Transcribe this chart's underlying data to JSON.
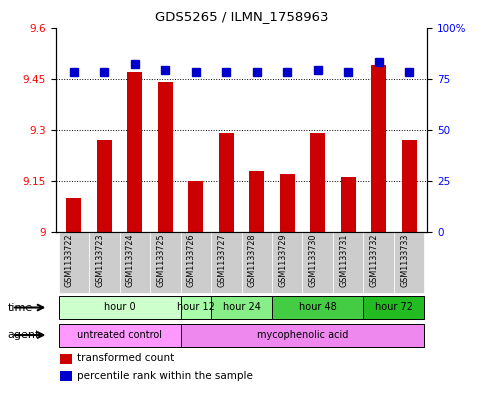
{
  "title": "GDS5265 / ILMN_1758963",
  "samples": [
    "GSM1133722",
    "GSM1133723",
    "GSM1133724",
    "GSM1133725",
    "GSM1133726",
    "GSM1133727",
    "GSM1133728",
    "GSM1133729",
    "GSM1133730",
    "GSM1133731",
    "GSM1133732",
    "GSM1133733"
  ],
  "bar_values": [
    9.1,
    9.27,
    9.47,
    9.44,
    9.15,
    9.29,
    9.18,
    9.17,
    9.29,
    9.16,
    9.49,
    9.27
  ],
  "percentile_values": [
    78,
    78,
    82,
    79,
    78,
    78,
    78,
    78,
    79,
    78,
    83,
    78
  ],
  "bar_color": "#cc0000",
  "percentile_color": "#0000cc",
  "ylim_left": [
    9.0,
    9.6
  ],
  "ylim_right": [
    0,
    100
  ],
  "yticks_left": [
    9.0,
    9.15,
    9.3,
    9.45,
    9.6
  ],
  "yticks_right": [
    0,
    25,
    50,
    75,
    100
  ],
  "ytick_labels_left": [
    "9",
    "9.15",
    "9.3",
    "9.45",
    "9.6"
  ],
  "ytick_labels_right": [
    "0",
    "25",
    "50",
    "75",
    "100%"
  ],
  "hgrid_vals": [
    9.15,
    9.3,
    9.45
  ],
  "time_groups": [
    {
      "label": "hour 0",
      "start": 0,
      "end": 3,
      "color": "#ccffcc"
    },
    {
      "label": "hour 12",
      "start": 4,
      "end": 4,
      "color": "#aaffaa"
    },
    {
      "label": "hour 24",
      "start": 5,
      "end": 6,
      "color": "#88ee88"
    },
    {
      "label": "hour 48",
      "start": 7,
      "end": 9,
      "color": "#44cc44"
    },
    {
      "label": "hour 72",
      "start": 10,
      "end": 11,
      "color": "#22bb22"
    }
  ],
  "agent_groups": [
    {
      "label": "untreated control",
      "start": 0,
      "end": 3,
      "color": "#ff99ff"
    },
    {
      "label": "mycophenolic acid",
      "start": 4,
      "end": 11,
      "color": "#ee88ee"
    }
  ],
  "legend_items": [
    {
      "label": "transformed count",
      "color": "#cc0000"
    },
    {
      "label": "percentile rank within the sample",
      "color": "#0000cc"
    }
  ],
  "bg_color": "#ffffff",
  "sample_bg_color": "#cccccc",
  "bar_width": 0.5,
  "percentile_marker_size": 6
}
